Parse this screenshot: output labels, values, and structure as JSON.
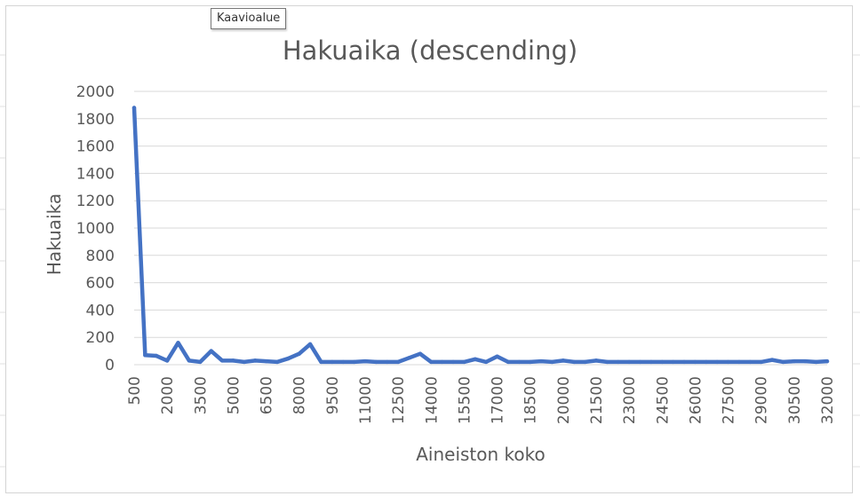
{
  "tooltip": {
    "text": "Kaavioalue"
  },
  "colors": {
    "series": "#4472c4",
    "gridline": "#d9d9d9",
    "text": "#595959",
    "sheet_grid": "#e1e1e1"
  },
  "chart_data": {
    "type": "line",
    "title": "Hakuaika (descending)",
    "xlabel": "Aineiston koko",
    "ylabel": "Hakuaika",
    "ylim": [
      0,
      2000
    ],
    "yticks": [
      0,
      200,
      400,
      600,
      800,
      1000,
      1200,
      1400,
      1600,
      1800,
      2000
    ],
    "grid": true,
    "legend": "none",
    "x": [
      500,
      1000,
      1500,
      2000,
      2500,
      3000,
      3500,
      4000,
      4500,
      5000,
      5500,
      6000,
      6500,
      7000,
      7500,
      8000,
      8500,
      9000,
      9500,
      10000,
      10500,
      11000,
      11500,
      12000,
      12500,
      13000,
      13500,
      14000,
      14500,
      15000,
      15500,
      16000,
      16500,
      17000,
      17500,
      18000,
      18500,
      19000,
      19500,
      20000,
      20500,
      21000,
      21500,
      22000,
      22500,
      23000,
      23500,
      24000,
      24500,
      25000,
      25500,
      26000,
      26500,
      27000,
      27500,
      28000,
      28500,
      29000,
      29500,
      30000,
      30500,
      31000,
      31500,
      32000
    ],
    "x_tick_labels": [
      "500",
      "2000",
      "3500",
      "5000",
      "6500",
      "8000",
      "9500",
      "11000",
      "12500",
      "14000",
      "15500",
      "17000",
      "18500",
      "20000",
      "21500",
      "23000",
      "24500",
      "26000",
      "27500",
      "29000",
      "30500",
      "32000"
    ],
    "series": [
      {
        "values": [
          1880,
          70,
          65,
          30,
          160,
          30,
          20,
          100,
          30,
          30,
          20,
          30,
          25,
          20,
          45,
          80,
          150,
          20,
          20,
          20,
          20,
          25,
          20,
          20,
          20,
          50,
          80,
          20,
          20,
          20,
          20,
          40,
          20,
          60,
          20,
          20,
          20,
          25,
          20,
          30,
          20,
          20,
          30,
          20,
          20,
          20,
          20,
          20,
          20,
          20,
          20,
          20,
          20,
          20,
          20,
          20,
          20,
          20,
          35,
          20,
          25,
          25,
          20,
          25
        ]
      }
    ]
  }
}
